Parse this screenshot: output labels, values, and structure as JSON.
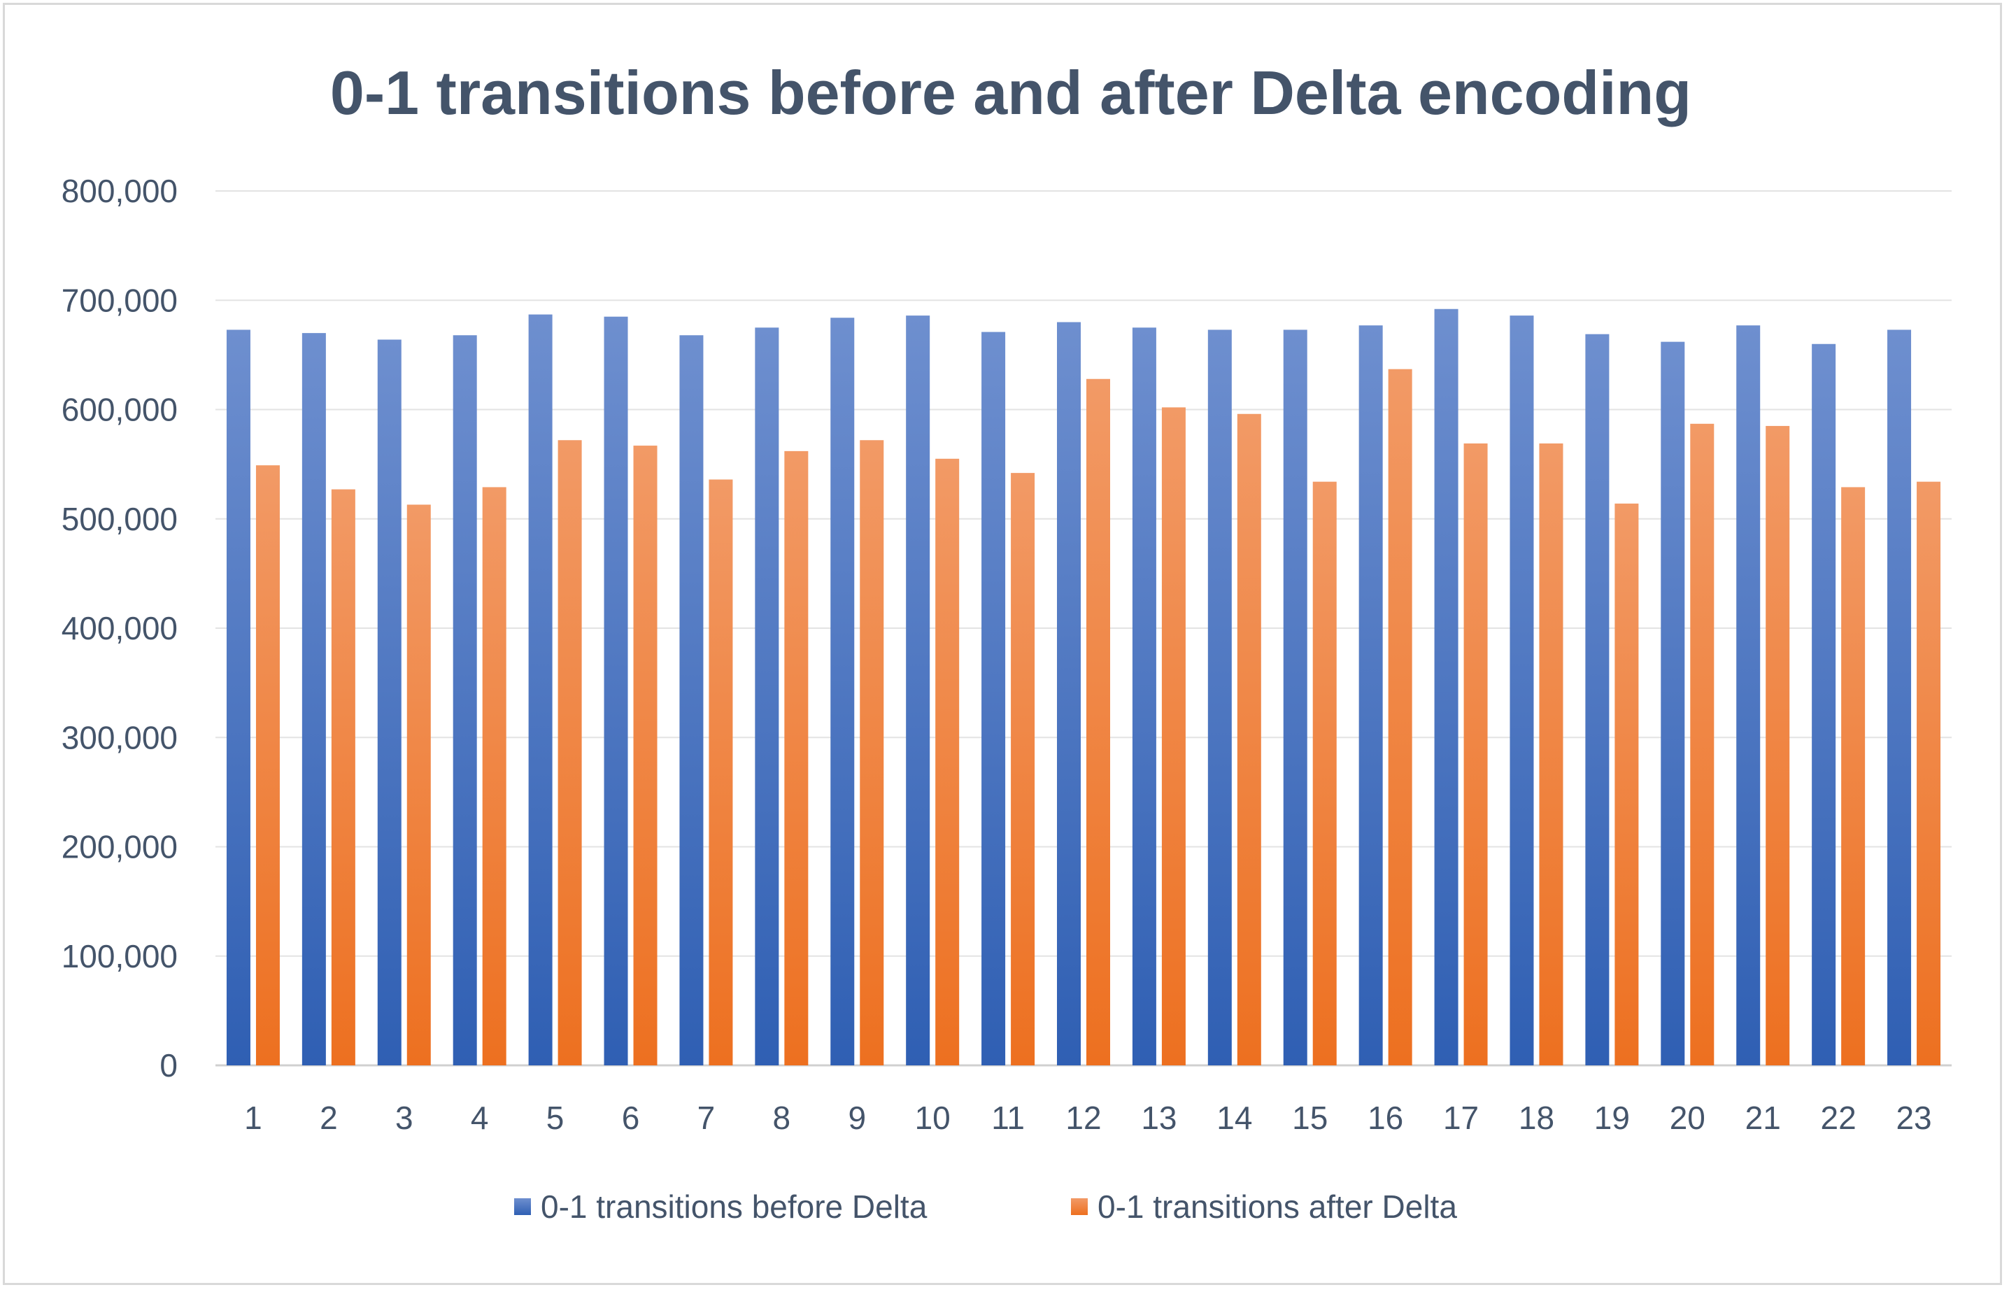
{
  "chart_data": {
    "type": "bar",
    "title": "0-1 transitions before and after Delta encoding",
    "xlabel": "",
    "ylabel": "",
    "ylim": [
      0,
      800000
    ],
    "yticks": [
      0,
      100000,
      200000,
      300000,
      400000,
      500000,
      600000,
      700000,
      800000
    ],
    "ytick_labels": [
      "0",
      "100,000",
      "200,000",
      "300,000",
      "400,000",
      "500,000",
      "600,000",
      "700,000",
      "800,000"
    ],
    "grid": true,
    "legend_position": "bottom",
    "categories": [
      "1",
      "2",
      "3",
      "4",
      "5",
      "6",
      "7",
      "8",
      "9",
      "10",
      "11",
      "12",
      "13",
      "14",
      "15",
      "16",
      "17",
      "18",
      "19",
      "20",
      "21",
      "22",
      "23"
    ],
    "series": [
      {
        "name": "0-1 transitions before Delta",
        "color": "#4472c4",
        "values": [
          673000,
          670000,
          664000,
          668000,
          687000,
          685000,
          668000,
          675000,
          684000,
          686000,
          671000,
          680000,
          675000,
          673000,
          673000,
          677000,
          692000,
          686000,
          669000,
          662000,
          677000,
          660000,
          673000
        ]
      },
      {
        "name": "0-1 transitions after Delta",
        "color": "#ed7d31",
        "values": [
          549000,
          527000,
          513000,
          529000,
          572000,
          567000,
          536000,
          562000,
          572000,
          555000,
          542000,
          628000,
          602000,
          596000,
          534000,
          637000,
          569000,
          569000,
          514000,
          587000,
          585000,
          529000,
          534000
        ]
      }
    ]
  }
}
